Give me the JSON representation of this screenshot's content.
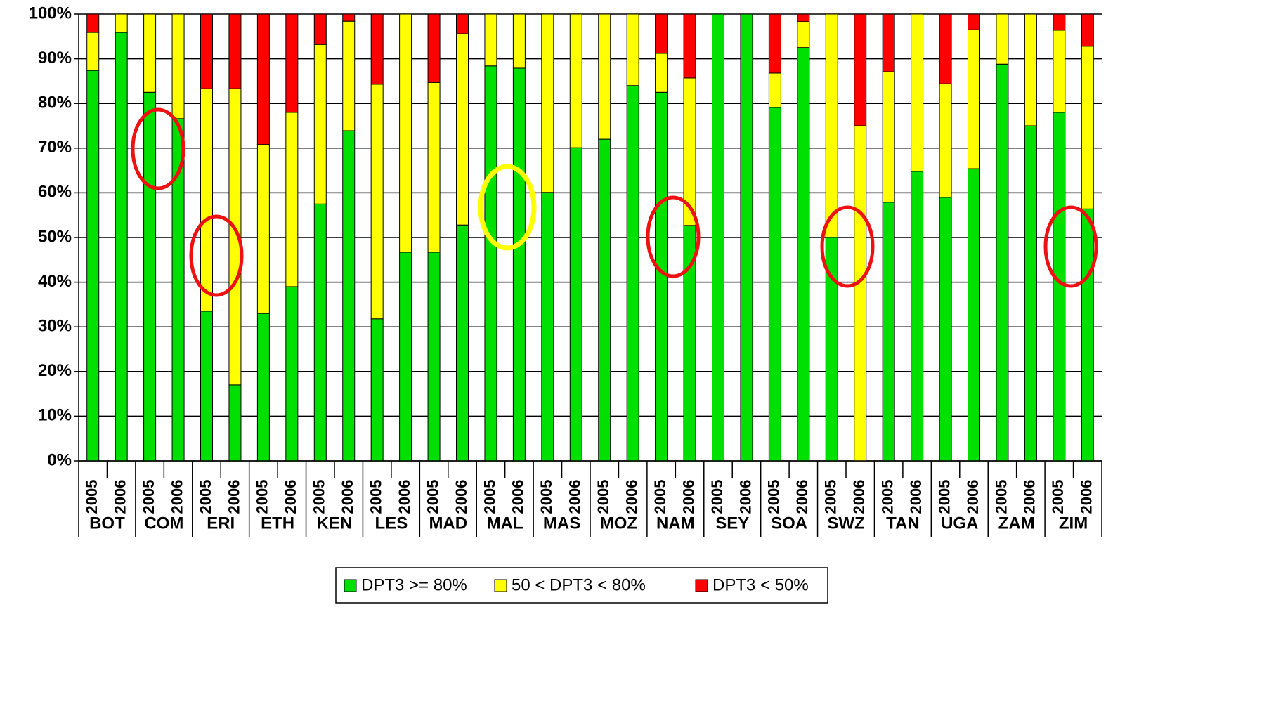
{
  "chart_data": {
    "type": "stacked_bar",
    "categories": [
      "2005",
      "2006",
      "2005",
      "2006",
      "2005",
      "2006",
      "2005",
      "2006",
      "2005",
      "2006",
      "2005",
      "2006",
      "2005",
      "2006",
      "2005",
      "2006",
      "2005",
      "2006",
      "2005",
      "2006",
      "2005",
      "2006",
      "2005",
      "2006",
      "2005",
      "2006",
      "2005",
      "2006",
      "2005",
      "2006",
      "2005",
      "2006",
      "2005",
      "2006",
      "2005",
      "2006"
    ],
    "groups": [
      "BOT",
      "COM",
      "ERI",
      "ETH",
      "KEN",
      "LES",
      "MAD",
      "MAL",
      "MAS",
      "MOZ",
      "NAM",
      "SEY",
      "SOA",
      "SWZ",
      "TAN",
      "UGA",
      "ZAM",
      "ZIM"
    ],
    "series": [
      {
        "name": "DPT3 >= 80%",
        "color": "#00e000",
        "values": [
          87.4,
          95.9,
          82.5,
          76.6,
          33.5,
          17,
          33,
          39,
          57.5,
          73.9,
          31.8,
          46.7,
          46.7,
          52.8,
          88.4,
          87.9,
          60.1,
          70.1,
          72,
          84,
          82.5,
          52.7,
          100,
          100,
          79.1,
          92.5,
          50,
          0,
          57.9,
          64.8,
          59,
          65.4,
          88.8,
          75,
          78,
          56.4
        ]
      },
      {
        "name": "50 < DPT3 < 80%",
        "color": "#ffff00",
        "values": [
          8.5,
          4.1,
          17.5,
          23.4,
          49.8,
          66.3,
          37.8,
          39,
          35.7,
          24.5,
          52.5,
          53.3,
          38,
          42.8,
          11.6,
          12.1,
          39.9,
          29.9,
          28,
          16,
          8.7,
          33,
          0,
          0,
          7.7,
          5.8,
          50,
          75,
          29.2,
          35.2,
          25.4,
          31.1,
          11.2,
          25,
          18.4,
          36.4
        ]
      },
      {
        "name": "DPT3 < 50%",
        "color": "#ff0000",
        "values": [
          4.1,
          0,
          0,
          0,
          16.7,
          16.7,
          29.2,
          22,
          6.8,
          1.6,
          15.7,
          0,
          15.3,
          4.4,
          0,
          0,
          0,
          0,
          0,
          0,
          8.8,
          14.3,
          0,
          0,
          13.2,
          1.7,
          0,
          25,
          12.9,
          0,
          15.6,
          3.5,
          0,
          0,
          3.6,
          7.2
        ]
      }
    ],
    "ylim": [
      0,
      100
    ],
    "yticks": [
      {
        "value": 0,
        "label": "0%"
      },
      {
        "value": 10,
        "label": "10%"
      },
      {
        "value": 20,
        "label": "20%"
      },
      {
        "value": 30,
        "label": "30%"
      },
      {
        "value": 40,
        "label": "40%"
      },
      {
        "value": 50,
        "label": "50%"
      },
      {
        "value": 60,
        "label": "60%"
      },
      {
        "value": 70,
        "label": "70%"
      },
      {
        "value": 80,
        "label": "80%"
      },
      {
        "value": 90,
        "label": "90%"
      },
      {
        "value": 100,
        "label": "100%"
      }
    ],
    "grid": true,
    "legend": "bottom"
  }
}
